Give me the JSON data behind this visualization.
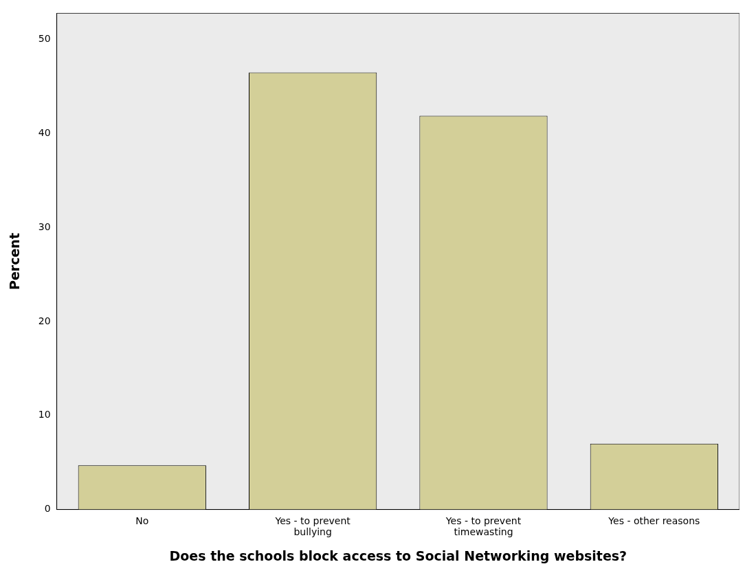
{
  "chart_data": {
    "type": "bar",
    "xlabel": "Does the schools block access to Social Networking websites?",
    "ylabel": "Percent",
    "categories": [
      "No",
      "Yes - to prevent bullying",
      "Yes - to prevent timewasting",
      "Yes - other reasons"
    ],
    "values": [
      4.7,
      46.5,
      41.9,
      7.0
    ],
    "color": "#d3cf98",
    "ylim": [
      0,
      52.8
    ],
    "yticks": [
      0,
      10,
      20,
      30,
      40,
      50
    ],
    "grid": false,
    "legend": false
  }
}
